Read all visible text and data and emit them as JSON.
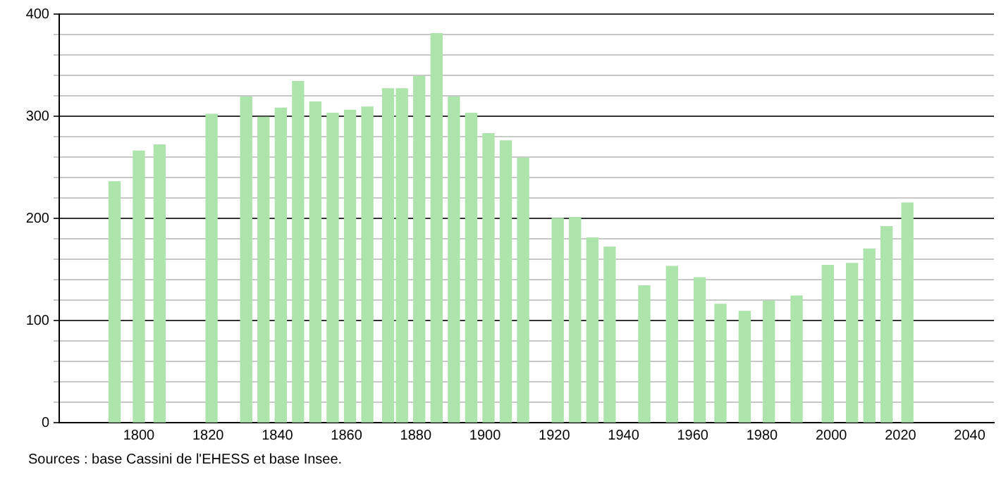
{
  "chart_data": {
    "type": "bar",
    "x": [
      1793,
      1800,
      1806,
      1821,
      1831,
      1836,
      1841,
      1846,
      1851,
      1856,
      1861,
      1866,
      1872,
      1876,
      1881,
      1886,
      1891,
      1896,
      1901,
      1906,
      1911,
      1921,
      1926,
      1931,
      1936,
      1946,
      1954,
      1962,
      1968,
      1975,
      1982,
      1990,
      1999,
      2006,
      2011,
      2016,
      2022
    ],
    "values": [
      236,
      266,
      272,
      302,
      319,
      299,
      308,
      334,
      314,
      303,
      306,
      309,
      327,
      327,
      339,
      381,
      319,
      303,
      283,
      276,
      259,
      200,
      201,
      181,
      172,
      134,
      153,
      142,
      116,
      109,
      119,
      124,
      154,
      156,
      170,
      192,
      215
    ],
    "color": "#ace4ac",
    "xlim": [
      1777,
      2047
    ],
    "xticks": [
      1800,
      1820,
      1840,
      1860,
      1880,
      1900,
      1920,
      1940,
      1960,
      1980,
      2000,
      2020,
      2040
    ],
    "ylim": [
      0,
      400
    ],
    "yticks": [
      0,
      {
        "value": 20,
        "label": null
      },
      {
        "value": 40,
        "label": null
      },
      {
        "value": 60,
        "label": null
      },
      {
        "value": 80,
        "label": null
      },
      100,
      {
        "value": 120,
        "label": null
      },
      {
        "value": 140,
        "label": null
      },
      {
        "value": 160,
        "label": null
      },
      {
        "value": 180,
        "label": null
      },
      200,
      {
        "value": 220,
        "label": null
      },
      {
        "value": 240,
        "label": null
      },
      {
        "value": 260,
        "label": null
      },
      {
        "value": 280,
        "label": null
      },
      300,
      {
        "value": 320,
        "label": null
      },
      {
        "value": 340,
        "label": null
      },
      {
        "value": 360,
        "label": null
      },
      {
        "value": 380,
        "label": null
      },
      400
    ],
    "grid": "y",
    "annotations": [
      "Sources : base Cassini de l'EHESS et base Insee."
    ]
  }
}
